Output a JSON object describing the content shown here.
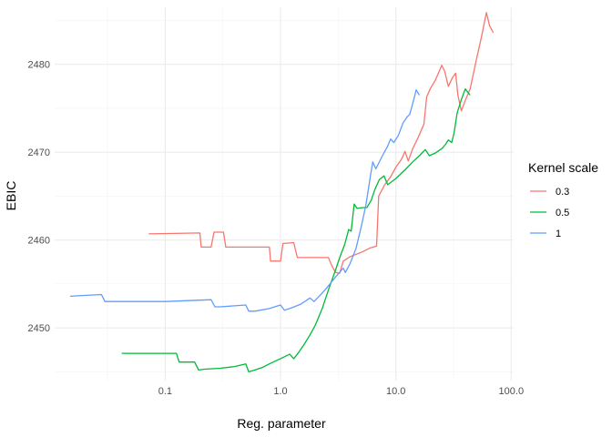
{
  "chart_data": {
    "type": "line",
    "xlabel": "Reg. parameter",
    "ylabel": "EBIC",
    "xscale": "log10",
    "xlim": [
      0.011,
      105
    ],
    "ylim": [
      2444,
      2486.5
    ],
    "xticks": [
      0.1,
      1.0,
      10.0,
      100.0
    ],
    "xtick_labels": [
      "0.1",
      "1.0",
      "10.0",
      "100.0"
    ],
    "yticks": [
      2450,
      2460,
      2470,
      2480
    ],
    "ytick_labels": [
      "2450",
      "2460",
      "2470",
      "2480"
    ],
    "grid": true,
    "legend_position": "right",
    "legend": {
      "title": "Kernel scale",
      "entries": [
        "0.3",
        "0.5",
        "1"
      ]
    },
    "series": [
      {
        "name": "0.3",
        "color": "#F8766D",
        "points": [
          [
            0.072,
            2460.7
          ],
          [
            0.2,
            2460.8
          ],
          [
            0.205,
            2459.2
          ],
          [
            0.25,
            2459.2
          ],
          [
            0.265,
            2460.9
          ],
          [
            0.32,
            2460.9
          ],
          [
            0.335,
            2459.2
          ],
          [
            0.8,
            2459.2
          ],
          [
            0.82,
            2457.6
          ],
          [
            1.0,
            2457.6
          ],
          [
            1.05,
            2459.6
          ],
          [
            1.3,
            2459.7
          ],
          [
            1.4,
            2458.0
          ],
          [
            2.6,
            2458.0
          ],
          [
            2.8,
            2457.0
          ],
          [
            3.0,
            2456.3
          ],
          [
            3.25,
            2456.2
          ],
          [
            3.5,
            2457.6
          ],
          [
            4.0,
            2458.1
          ],
          [
            5.0,
            2458.6
          ],
          [
            6.0,
            2459.1
          ],
          [
            6.8,
            2459.3
          ],
          [
            7.1,
            2465.0
          ],
          [
            8.0,
            2466.3
          ],
          [
            9.0,
            2467.2
          ],
          [
            10.0,
            2468.3
          ],
          [
            11.2,
            2469.2
          ],
          [
            12.0,
            2470.1
          ],
          [
            12.8,
            2469.0
          ],
          [
            14.0,
            2470.4
          ],
          [
            15.5,
            2471.6
          ],
          [
            17.5,
            2473.2
          ],
          [
            18.5,
            2476.3
          ],
          [
            20.0,
            2477.3
          ],
          [
            22.0,
            2478.2
          ],
          [
            25.0,
            2479.9
          ],
          [
            26.5,
            2479.2
          ],
          [
            28.5,
            2477.5
          ],
          [
            31.0,
            2478.5
          ],
          [
            33.0,
            2479.0
          ],
          [
            34.5,
            2476.5
          ],
          [
            37.0,
            2474.7
          ],
          [
            40.0,
            2475.9
          ],
          [
            44.0,
            2477.2
          ],
          [
            50.0,
            2480.6
          ],
          [
            55.0,
            2483.0
          ],
          [
            61.0,
            2485.9
          ],
          [
            65.0,
            2484.4
          ],
          [
            70.0,
            2483.6
          ]
        ]
      },
      {
        "name": "0.5",
        "color": "#00BA38",
        "points": [
          [
            0.042,
            2447.1
          ],
          [
            0.125,
            2447.1
          ],
          [
            0.132,
            2446.1
          ],
          [
            0.18,
            2446.1
          ],
          [
            0.195,
            2445.2
          ],
          [
            0.22,
            2445.3
          ],
          [
            0.3,
            2445.4
          ],
          [
            0.4,
            2445.6
          ],
          [
            0.5,
            2445.9
          ],
          [
            0.53,
            2445.0
          ],
          [
            0.6,
            2445.2
          ],
          [
            0.7,
            2445.5
          ],
          [
            0.8,
            2445.9
          ],
          [
            1.0,
            2446.5
          ],
          [
            1.2,
            2447.0
          ],
          [
            1.3,
            2446.5
          ],
          [
            1.4,
            2447.0
          ],
          [
            1.6,
            2448.1
          ],
          [
            1.8,
            2449.2
          ],
          [
            2.0,
            2450.3
          ],
          [
            2.3,
            2452.2
          ],
          [
            2.6,
            2454.3
          ],
          [
            3.0,
            2456.6
          ],
          [
            3.3,
            2458.2
          ],
          [
            3.6,
            2459.5
          ],
          [
            3.9,
            2461.2
          ],
          [
            4.1,
            2461.0
          ],
          [
            4.35,
            2464.1
          ],
          [
            4.6,
            2463.6
          ],
          [
            5.2,
            2463.7
          ],
          [
            5.6,
            2463.7
          ],
          [
            6.1,
            2464.5
          ],
          [
            6.6,
            2465.8
          ],
          [
            7.2,
            2466.9
          ],
          [
            7.9,
            2467.3
          ],
          [
            8.5,
            2466.3
          ],
          [
            10.0,
            2467.0
          ],
          [
            12.0,
            2468.0
          ],
          [
            14.0,
            2468.9
          ],
          [
            16.0,
            2469.6
          ],
          [
            18.0,
            2470.3
          ],
          [
            19.5,
            2469.6
          ],
          [
            22.0,
            2469.9
          ],
          [
            25.0,
            2470.4
          ],
          [
            27.0,
            2470.9
          ],
          [
            28.5,
            2471.4
          ],
          [
            30.5,
            2471.1
          ],
          [
            32.0,
            2472.2
          ],
          [
            34.0,
            2474.5
          ],
          [
            37.0,
            2476.0
          ],
          [
            40.0,
            2477.2
          ],
          [
            44.0,
            2476.5
          ]
        ]
      },
      {
        "name": "1",
        "color": "#619CFF",
        "points": [
          [
            0.015,
            2453.6
          ],
          [
            0.028,
            2453.8
          ],
          [
            0.03,
            2453.0
          ],
          [
            0.1,
            2453.0
          ],
          [
            0.25,
            2453.2
          ],
          [
            0.27,
            2452.4
          ],
          [
            0.3,
            2452.4
          ],
          [
            0.5,
            2452.6
          ],
          [
            0.53,
            2451.9
          ],
          [
            0.6,
            2451.9
          ],
          [
            0.8,
            2452.2
          ],
          [
            1.0,
            2452.6
          ],
          [
            1.08,
            2452.0
          ],
          [
            1.2,
            2452.2
          ],
          [
            1.5,
            2452.7
          ],
          [
            1.8,
            2453.4
          ],
          [
            1.95,
            2453.0
          ],
          [
            2.2,
            2453.7
          ],
          [
            2.5,
            2454.5
          ],
          [
            3.0,
            2455.8
          ],
          [
            3.5,
            2456.8
          ],
          [
            3.65,
            2456.3
          ],
          [
            4.0,
            2457.3
          ],
          [
            4.5,
            2459.0
          ],
          [
            5.0,
            2461.5
          ],
          [
            5.5,
            2464.0
          ],
          [
            6.0,
            2467.2
          ],
          [
            6.3,
            2468.9
          ],
          [
            6.7,
            2468.1
          ],
          [
            7.5,
            2469.4
          ],
          [
            8.5,
            2470.7
          ],
          [
            9.0,
            2471.5
          ],
          [
            9.6,
            2471.1
          ],
          [
            10.5,
            2471.9
          ],
          [
            11.5,
            2473.3
          ],
          [
            12.5,
            2474.0
          ],
          [
            13.2,
            2474.3
          ],
          [
            13.7,
            2475.1
          ],
          [
            14.5,
            2476.3
          ],
          [
            15.0,
            2477.1
          ],
          [
            16.0,
            2476.5
          ]
        ]
      }
    ]
  }
}
